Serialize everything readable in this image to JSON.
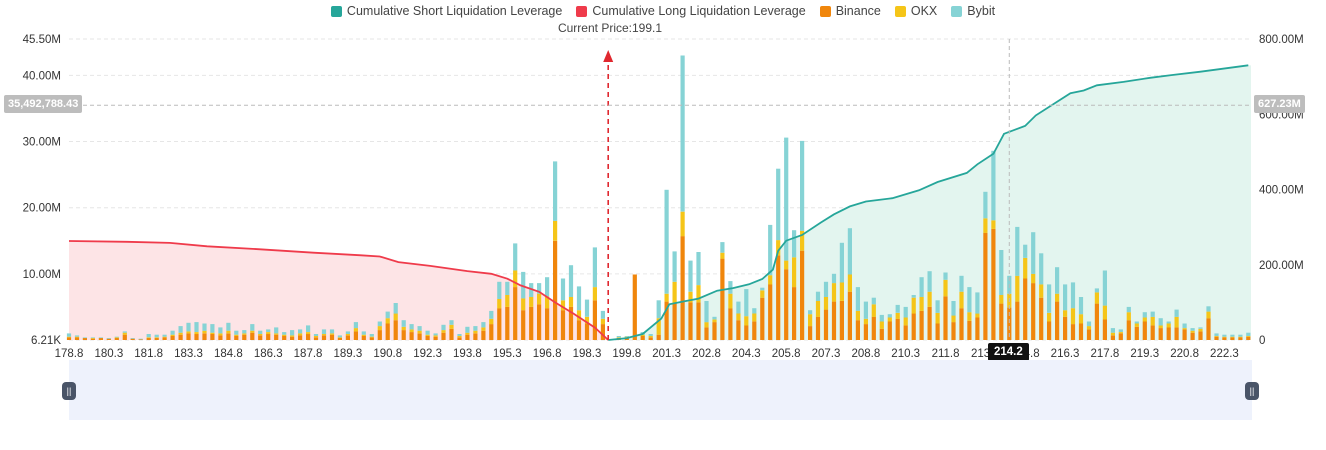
{
  "chart_data": {
    "type": "bar",
    "legend": [
      {
        "name": "Cumulative Short Liquidation Leverage",
        "color": "#26a69a"
      },
      {
        "name": "Cumulative Long Liquidation Leverage",
        "color": "#ef3b4b"
      },
      {
        "name": "Binance",
        "color": "#f0860c"
      },
      {
        "name": "OKX",
        "color": "#f5c518"
      },
      {
        "name": "Bybit",
        "color": "#86d3d5"
      }
    ],
    "current_price_label": "Current Price:199.1",
    "current_price": 199.1,
    "x_ticks": [
      "178.8",
      "180.3",
      "181.8",
      "183.3",
      "184.8",
      "186.3",
      "187.8",
      "189.3",
      "190.8",
      "192.3",
      "193.8",
      "195.3",
      "196.8",
      "198.3",
      "199.8",
      "201.3",
      "202.8",
      "204.3",
      "205.8",
      "207.3",
      "208.8",
      "210.3",
      "211.8",
      "213.3",
      "214.8",
      "216.3",
      "217.8",
      "219.3",
      "220.8",
      "222.3"
    ],
    "x_range": [
      178.8,
      223.3
    ],
    "y_left": {
      "ticks": [
        "6.21K",
        "10.00M",
        "20.00M",
        "30.00M",
        "40.00M",
        "45.50M"
      ],
      "tick_values": [
        0,
        10000000,
        20000000,
        30000000,
        40000000,
        45500000
      ],
      "range": [
        0,
        45500000
      ]
    },
    "y_right": {
      "ticks": [
        "0",
        "200.00M",
        "400.00M",
        "600.00M",
        "800.00M"
      ],
      "tick_values": [
        0,
        200000000,
        400000000,
        600000000,
        800000000
      ],
      "range": [
        0,
        800000000
      ]
    },
    "crosshair": {
      "x_label": "214.2",
      "x_value": 214.2,
      "y_left_label": "35,492,788.43",
      "y_left_value": 35492788.43,
      "y_right_label": "627.23M"
    },
    "bars": [
      {
        "x": 178.8,
        "binance": 0.4,
        "okx": 0.1,
        "bybit": 0.5
      },
      {
        "x": 179.1,
        "binance": 0.4,
        "okx": 0.1,
        "bybit": 0.2
      },
      {
        "x": 179.4,
        "binance": 0.3,
        "okx": 0.0,
        "bybit": 0.1
      },
      {
        "x": 179.7,
        "binance": 0.2,
        "okx": 0.1,
        "bybit": 0.1
      },
      {
        "x": 180.0,
        "binance": 0.3,
        "okx": 0.0,
        "bybit": 0.1
      },
      {
        "x": 180.3,
        "binance": 0.2,
        "okx": 0.0,
        "bybit": 0.1
      },
      {
        "x": 180.6,
        "binance": 0.3,
        "okx": 0.1,
        "bybit": 0.1
      },
      {
        "x": 180.9,
        "binance": 0.8,
        "okx": 0.3,
        "bybit": 0.2
      },
      {
        "x": 181.2,
        "binance": 0.2,
        "okx": 0.0,
        "bybit": 0.1
      },
      {
        "x": 181.5,
        "binance": 0.1,
        "okx": 0.0,
        "bybit": 0.1
      },
      {
        "x": 181.8,
        "binance": 0.3,
        "okx": 0.1,
        "bybit": 0.5
      },
      {
        "x": 182.1,
        "binance": 0.3,
        "okx": 0.1,
        "bybit": 0.4
      },
      {
        "x": 182.4,
        "binance": 0.4,
        "okx": 0.1,
        "bybit": 0.3
      },
      {
        "x": 182.7,
        "binance": 0.6,
        "okx": 0.2,
        "bybit": 0.6
      },
      {
        "x": 183.0,
        "binance": 0.8,
        "okx": 0.3,
        "bybit": 1.0
      },
      {
        "x": 183.3,
        "binance": 1.0,
        "okx": 0.3,
        "bybit": 1.3
      },
      {
        "x": 183.6,
        "binance": 0.9,
        "okx": 0.3,
        "bybit": 1.5
      },
      {
        "x": 183.9,
        "binance": 1.0,
        "okx": 0.4,
        "bybit": 1.1
      },
      {
        "x": 184.2,
        "binance": 0.9,
        "okx": 0.2,
        "bybit": 1.3
      },
      {
        "x": 184.5,
        "binance": 0.7,
        "okx": 0.3,
        "bybit": 0.9
      },
      {
        "x": 184.8,
        "binance": 1.0,
        "okx": 0.4,
        "bybit": 1.2
      },
      {
        "x": 185.1,
        "binance": 0.6,
        "okx": 0.2,
        "bybit": 0.6
      },
      {
        "x": 185.4,
        "binance": 0.8,
        "okx": 0.2,
        "bybit": 0.5
      },
      {
        "x": 185.7,
        "binance": 1.1,
        "okx": 0.3,
        "bybit": 1.0
      },
      {
        "x": 186.0,
        "binance": 0.7,
        "okx": 0.2,
        "bybit": 0.5
      },
      {
        "x": 186.3,
        "binance": 0.9,
        "okx": 0.3,
        "bybit": 0.4
      },
      {
        "x": 186.6,
        "binance": 0.8,
        "okx": 0.2,
        "bybit": 0.9
      },
      {
        "x": 186.9,
        "binance": 0.6,
        "okx": 0.2,
        "bybit": 0.4
      },
      {
        "x": 187.2,
        "binance": 0.5,
        "okx": 0.2,
        "bybit": 0.8
      },
      {
        "x": 187.5,
        "binance": 0.7,
        "okx": 0.3,
        "bybit": 0.6
      },
      {
        "x": 187.8,
        "binance": 0.9,
        "okx": 0.3,
        "bybit": 1.0
      },
      {
        "x": 188.1,
        "binance": 0.4,
        "okx": 0.2,
        "bybit": 0.3
      },
      {
        "x": 188.4,
        "binance": 0.7,
        "okx": 0.2,
        "bybit": 0.7
      },
      {
        "x": 188.7,
        "binance": 0.8,
        "okx": 0.2,
        "bybit": 0.6
      },
      {
        "x": 189.0,
        "binance": 0.3,
        "okx": 0.1,
        "bybit": 0.3
      },
      {
        "x": 189.3,
        "binance": 0.7,
        "okx": 0.2,
        "bybit": 0.4
      },
      {
        "x": 189.6,
        "binance": 1.3,
        "okx": 0.5,
        "bybit": 0.9
      },
      {
        "x": 189.9,
        "binance": 0.6,
        "okx": 0.2,
        "bybit": 0.5
      },
      {
        "x": 190.2,
        "binance": 0.4,
        "okx": 0.1,
        "bybit": 0.4
      },
      {
        "x": 190.5,
        "binance": 1.5,
        "okx": 0.6,
        "bybit": 0.7
      },
      {
        "x": 190.8,
        "binance": 2.5,
        "okx": 0.8,
        "bybit": 1.0
      },
      {
        "x": 191.1,
        "binance": 3.0,
        "okx": 1.0,
        "bybit": 1.6
      },
      {
        "x": 191.4,
        "binance": 1.5,
        "okx": 0.5,
        "bybit": 1.0
      },
      {
        "x": 191.7,
        "binance": 1.2,
        "okx": 0.4,
        "bybit": 0.8
      },
      {
        "x": 192.0,
        "binance": 1.0,
        "okx": 0.4,
        "bybit": 0.7
      },
      {
        "x": 192.3,
        "binance": 0.6,
        "okx": 0.2,
        "bybit": 0.6
      },
      {
        "x": 192.6,
        "binance": 0.5,
        "okx": 0.2,
        "bybit": 0.3
      },
      {
        "x": 192.9,
        "binance": 1.1,
        "okx": 0.4,
        "bybit": 0.8
      },
      {
        "x": 193.2,
        "binance": 1.7,
        "okx": 0.6,
        "bybit": 0.7
      },
      {
        "x": 193.5,
        "binance": 0.4,
        "okx": 0.2,
        "bybit": 0.3
      },
      {
        "x": 193.8,
        "binance": 0.8,
        "okx": 0.3,
        "bybit": 0.9
      },
      {
        "x": 194.1,
        "binance": 1.0,
        "okx": 0.4,
        "bybit": 0.7
      },
      {
        "x": 194.4,
        "binance": 1.4,
        "okx": 0.5,
        "bybit": 0.8
      },
      {
        "x": 194.7,
        "binance": 2.4,
        "okx": 0.8,
        "bybit": 1.2
      },
      {
        "x": 195.0,
        "binance": 4.8,
        "okx": 1.4,
        "bybit": 2.6
      },
      {
        "x": 195.3,
        "binance": 5.0,
        "okx": 1.8,
        "bybit": 2.0
      },
      {
        "x": 195.6,
        "binance": 8.0,
        "okx": 2.5,
        "bybit": 4.1
      },
      {
        "x": 195.9,
        "binance": 4.5,
        "okx": 1.8,
        "bybit": 4.0
      },
      {
        "x": 196.2,
        "binance": 5.0,
        "okx": 1.5,
        "bybit": 2.1
      },
      {
        "x": 196.5,
        "binance": 5.4,
        "okx": 1.6,
        "bybit": 1.6
      },
      {
        "x": 196.8,
        "binance": 4.8,
        "okx": 1.8,
        "bybit": 2.9
      },
      {
        "x": 197.1,
        "binance": 15.0,
        "okx": 3.0,
        "bybit": 9.0
      },
      {
        "x": 197.4,
        "binance": 4.5,
        "okx": 1.5,
        "bybit": 3.3
      },
      {
        "x": 197.7,
        "binance": 5.0,
        "okx": 1.5,
        "bybit": 4.8
      },
      {
        "x": 198.0,
        "binance": 3.0,
        "okx": 1.5,
        "bybit": 3.6
      },
      {
        "x": 198.3,
        "binance": 2.5,
        "okx": 1.0,
        "bybit": 2.6
      },
      {
        "x": 198.6,
        "binance": 6.0,
        "okx": 2.0,
        "bybit": 6.0
      },
      {
        "x": 198.9,
        "binance": 2.4,
        "okx": 0.8,
        "bybit": 1.2
      },
      {
        "x": 199.5,
        "binance": 0.3,
        "okx": 0.1,
        "bybit": 0.2
      },
      {
        "x": 199.8,
        "binance": 0.4,
        "okx": 0.1,
        "bybit": 0.1
      },
      {
        "x": 200.1,
        "binance": 9.9,
        "okx": 0.0,
        "bybit": 0.0
      },
      {
        "x": 200.4,
        "binance": 0.6,
        "okx": 0.2,
        "bybit": 0.4
      },
      {
        "x": 200.7,
        "binance": 0.4,
        "okx": 0.2,
        "bybit": 0.3
      },
      {
        "x": 201.0,
        "binance": 0.8,
        "okx": 2.5,
        "bybit": 2.7
      },
      {
        "x": 201.3,
        "binance": 5.8,
        "okx": 1.2,
        "bybit": 15.7
      },
      {
        "x": 201.6,
        "binance": 5.6,
        "okx": 3.2,
        "bybit": 4.6
      },
      {
        "x": 201.9,
        "binance": 15.7,
        "okx": 3.7,
        "bybit": 23.6
      },
      {
        "x": 202.2,
        "binance": 5.7,
        "okx": 1.6,
        "bybit": 4.7
      },
      {
        "x": 202.5,
        "binance": 5.7,
        "okx": 2.6,
        "bybit": 5.0
      },
      {
        "x": 202.8,
        "binance": 1.9,
        "okx": 0.8,
        "bybit": 3.2
      },
      {
        "x": 203.1,
        "binance": 2.7,
        "okx": 0.4,
        "bybit": 0.4
      },
      {
        "x": 203.4,
        "binance": 12.3,
        "okx": 0.9,
        "bybit": 1.6
      },
      {
        "x": 203.7,
        "binance": 4.8,
        "okx": 2.2,
        "bybit": 1.9
      },
      {
        "x": 204.0,
        "binance": 3.0,
        "okx": 1.0,
        "bybit": 1.8
      },
      {
        "x": 204.3,
        "binance": 2.2,
        "okx": 1.4,
        "bybit": 4.1
      },
      {
        "x": 204.6,
        "binance": 2.8,
        "okx": 1.2,
        "bybit": 0.8
      },
      {
        "x": 204.9,
        "binance": 6.4,
        "okx": 1.1,
        "bybit": 0.4
      },
      {
        "x": 205.2,
        "binance": 8.4,
        "okx": 1.4,
        "bybit": 7.6
      },
      {
        "x": 205.5,
        "binance": 12.8,
        "okx": 2.3,
        "bybit": 10.8
      },
      {
        "x": 205.8,
        "binance": 10.7,
        "okx": 1.3,
        "bybit": 18.6
      },
      {
        "x": 206.1,
        "binance": 8.0,
        "okx": 4.5,
        "bybit": 4.1
      },
      {
        "x": 206.4,
        "binance": 13.5,
        "okx": 3.0,
        "bybit": 13.6
      },
      {
        "x": 206.7,
        "binance": 2.1,
        "okx": 1.8,
        "bybit": 0.6
      },
      {
        "x": 207.0,
        "binance": 3.5,
        "okx": 2.4,
        "bybit": 1.4
      },
      {
        "x": 207.3,
        "binance": 4.6,
        "okx": 1.9,
        "bybit": 2.3
      },
      {
        "x": 207.6,
        "binance": 5.8,
        "okx": 2.8,
        "bybit": 1.4
      },
      {
        "x": 207.9,
        "binance": 5.9,
        "okx": 2.8,
        "bybit": 6.0
      },
      {
        "x": 208.2,
        "binance": 7.3,
        "okx": 2.6,
        "bybit": 7.0
      },
      {
        "x": 208.5,
        "binance": 3.0,
        "okx": 1.4,
        "bybit": 3.6
      },
      {
        "x": 208.8,
        "binance": 2.4,
        "okx": 0.8,
        "bybit": 2.6
      },
      {
        "x": 209.1,
        "binance": 3.5,
        "okx": 1.9,
        "bybit": 1.0
      },
      {
        "x": 209.4,
        "binance": 1.7,
        "okx": 1.1,
        "bybit": 1.0
      },
      {
        "x": 209.7,
        "binance": 2.8,
        "okx": 0.6,
        "bybit": 0.5
      },
      {
        "x": 210.0,
        "binance": 3.2,
        "okx": 0.9,
        "bybit": 1.2
      },
      {
        "x": 210.3,
        "binance": 2.2,
        "okx": 1.2,
        "bybit": 1.6
      },
      {
        "x": 210.6,
        "binance": 4.0,
        "okx": 2.4,
        "bybit": 0.4
      },
      {
        "x": 210.9,
        "binance": 4.4,
        "okx": 2.1,
        "bybit": 3.0
      },
      {
        "x": 211.2,
        "binance": 5.0,
        "okx": 2.3,
        "bybit": 3.1
      },
      {
        "x": 211.5,
        "binance": 2.5,
        "okx": 1.6,
        "bybit": 1.9
      },
      {
        "x": 211.8,
        "binance": 6.6,
        "okx": 2.5,
        "bybit": 1.1
      },
      {
        "x": 212.1,
        "binance": 2.7,
        "okx": 1.0,
        "bybit": 2.2
      },
      {
        "x": 212.4,
        "binance": 4.8,
        "okx": 2.5,
        "bybit": 2.4
      },
      {
        "x": 212.7,
        "binance": 2.9,
        "okx": 1.3,
        "bybit": 3.8
      },
      {
        "x": 213.0,
        "binance": 3.4,
        "okx": 0.6,
        "bybit": 3.2
      },
      {
        "x": 213.3,
        "binance": 16.2,
        "okx": 2.2,
        "bybit": 4.0
      },
      {
        "x": 213.6,
        "binance": 16.8,
        "okx": 1.3,
        "bybit": 10.5
      },
      {
        "x": 213.9,
        "binance": 5.5,
        "okx": 1.3,
        "bybit": 6.8
      },
      {
        "x": 214.2,
        "binance": 4.9,
        "okx": 2.1,
        "bybit": 2.7
      },
      {
        "x": 214.5,
        "binance": 5.8,
        "okx": 3.9,
        "bybit": 7.4
      },
      {
        "x": 214.8,
        "binance": 9.3,
        "okx": 3.1,
        "bybit": 2.0
      },
      {
        "x": 215.1,
        "binance": 8.6,
        "okx": 1.4,
        "bybit": 6.3
      },
      {
        "x": 215.4,
        "binance": 6.4,
        "okx": 2.0,
        "bybit": 4.7
      },
      {
        "x": 215.7,
        "binance": 2.8,
        "okx": 1.3,
        "bybit": 4.3
      },
      {
        "x": 216.0,
        "binance": 5.8,
        "okx": 1.2,
        "bybit": 4.0
      },
      {
        "x": 216.3,
        "binance": 3.5,
        "okx": 1.0,
        "bybit": 3.9
      },
      {
        "x": 216.6,
        "binance": 2.4,
        "okx": 2.4,
        "bybit": 3.9
      },
      {
        "x": 216.9,
        "binance": 2.5,
        "okx": 1.4,
        "bybit": 2.6
      },
      {
        "x": 217.2,
        "binance": 1.6,
        "okx": 0.5,
        "bybit": 0.7
      },
      {
        "x": 217.5,
        "binance": 5.5,
        "okx": 1.7,
        "bybit": 0.6
      },
      {
        "x": 217.8,
        "binance": 3.1,
        "okx": 2.1,
        "bybit": 5.3
      },
      {
        "x": 218.1,
        "binance": 0.7,
        "okx": 0.4,
        "bybit": 0.7
      },
      {
        "x": 218.4,
        "binance": 1.0,
        "okx": 0.2,
        "bybit": 0.4
      },
      {
        "x": 218.7,
        "binance": 3.0,
        "okx": 1.2,
        "bybit": 0.8
      },
      {
        "x": 219.0,
        "binance": 2.0,
        "okx": 0.5,
        "bybit": 0.3
      },
      {
        "x": 219.3,
        "binance": 2.8,
        "okx": 0.6,
        "bybit": 0.8
      },
      {
        "x": 219.6,
        "binance": 2.2,
        "okx": 1.3,
        "bybit": 0.8
      },
      {
        "x": 219.9,
        "binance": 1.8,
        "okx": 0.4,
        "bybit": 1.1
      },
      {
        "x": 220.2,
        "binance": 1.9,
        "okx": 0.6,
        "bybit": 0.3
      },
      {
        "x": 220.5,
        "binance": 1.9,
        "okx": 1.6,
        "bybit": 1.1
      },
      {
        "x": 220.8,
        "binance": 1.6,
        "okx": 0.2,
        "bybit": 0.7
      },
      {
        "x": 221.1,
        "binance": 1.1,
        "okx": 0.3,
        "bybit": 0.4
      },
      {
        "x": 221.4,
        "binance": 1.3,
        "okx": 0.4,
        "bybit": 0.2
      },
      {
        "x": 221.7,
        "binance": 3.3,
        "okx": 1.0,
        "bybit": 0.8
      },
      {
        "x": 222.0,
        "binance": 0.5,
        "okx": 0.1,
        "bybit": 0.4
      },
      {
        "x": 222.3,
        "binance": 0.4,
        "okx": 0.1,
        "bybit": 0.3
      },
      {
        "x": 222.6,
        "binance": 0.4,
        "okx": 0.1,
        "bybit": 0.3
      },
      {
        "x": 222.9,
        "binance": 0.4,
        "okx": 0.1,
        "bybit": 0.3
      },
      {
        "x": 223.2,
        "binance": 0.5,
        "okx": 0.1,
        "bybit": 0.5
      }
    ],
    "bar_units": "millions",
    "cumulative_long": [
      [
        178.8,
        263
      ],
      [
        181.0,
        261
      ],
      [
        182.6,
        258
      ],
      [
        184.0,
        249
      ],
      [
        186.0,
        241
      ],
      [
        188.0,
        232
      ],
      [
        189.8,
        225
      ],
      [
        190.5,
        222
      ],
      [
        191.2,
        207
      ],
      [
        192.4,
        197
      ],
      [
        193.8,
        183
      ],
      [
        194.7,
        176
      ],
      [
        195.3,
        163
      ],
      [
        195.8,
        145
      ],
      [
        196.5,
        128
      ],
      [
        197.1,
        100
      ],
      [
        197.8,
        70
      ],
      [
        198.6,
        33
      ],
      [
        199.1,
        0
      ]
    ],
    "cumulative_short": [
      [
        199.1,
        0
      ],
      [
        199.8,
        5
      ],
      [
        200.4,
        16
      ],
      [
        201.1,
        57
      ],
      [
        201.4,
        95
      ],
      [
        201.9,
        102
      ],
      [
        202.5,
        110
      ],
      [
        203.2,
        131
      ],
      [
        203.8,
        138
      ],
      [
        204.4,
        148
      ],
      [
        204.9,
        162
      ],
      [
        205.3,
        187
      ],
      [
        205.5,
        237
      ],
      [
        205.8,
        264
      ],
      [
        206.4,
        279
      ],
      [
        207.1,
        312
      ],
      [
        207.6,
        334
      ],
      [
        208.2,
        355
      ],
      [
        208.8,
        368
      ],
      [
        209.8,
        377
      ],
      [
        210.8,
        398
      ],
      [
        211.5,
        420
      ],
      [
        212.6,
        444
      ],
      [
        213.0,
        467
      ],
      [
        213.6,
        495
      ],
      [
        214.0,
        548
      ],
      [
        214.8,
        569
      ],
      [
        215.2,
        597
      ],
      [
        216.0,
        633
      ],
      [
        216.5,
        656
      ],
      [
        217.0,
        663
      ],
      [
        217.5,
        677
      ],
      [
        218.5,
        686
      ],
      [
        219.5,
        697
      ],
      [
        220.3,
        704
      ],
      [
        221.4,
        713
      ],
      [
        223.2,
        730
      ]
    ],
    "cumulative_units": "millions"
  }
}
